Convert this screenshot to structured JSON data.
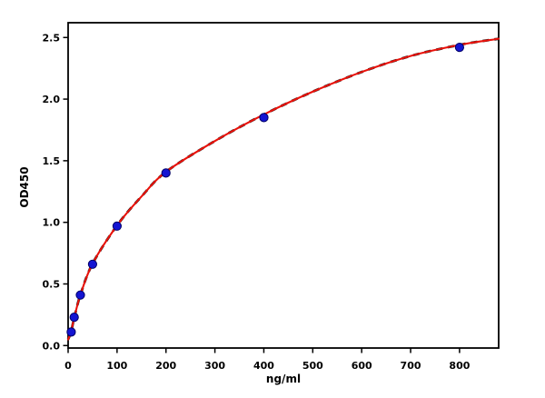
{
  "chart_data": {
    "type": "scatter",
    "title": "",
    "xlabel": "ng/ml",
    "ylabel": "OD450",
    "xlim": [
      0,
      880
    ],
    "ylim": [
      -0.02,
      2.62
    ],
    "grid": false,
    "legend": null,
    "background_color": "#ffffff",
    "axis_color": "#000000",
    "xticks": {
      "values": [
        0,
        100,
        200,
        300,
        400,
        500,
        600,
        700,
        800
      ],
      "labels": [
        "0",
        "100",
        "200",
        "300",
        "400",
        "500",
        "600",
        "700",
        "800"
      ]
    },
    "yticks": {
      "values": [
        0,
        0.5,
        1.0,
        1.5,
        2.0,
        2.5
      ],
      "labels": [
        "0.0",
        "0.5",
        "1.0",
        "1.5",
        "2.0",
        "2.5"
      ]
    },
    "series": [
      {
        "name": "standard-points",
        "type": "scatter",
        "marker": "circle",
        "fill_color": "#1414d2",
        "edge_color": "#000066",
        "x": [
          6.25,
          12.5,
          25,
          50,
          100,
          200,
          400,
          800
        ],
        "y": [
          0.11,
          0.23,
          0.41,
          0.66,
          0.97,
          1.4,
          1.85,
          2.42
        ]
      },
      {
        "name": "fitted-curve",
        "type": "line",
        "color": "#e8120b",
        "underlay_color": "#141414",
        "underlay_style": "dashed",
        "points": [
          [
            0,
            0.05
          ],
          [
            6.25,
            0.115
          ],
          [
            12.5,
            0.225
          ],
          [
            25,
            0.41
          ],
          [
            50,
            0.665
          ],
          [
            100,
            0.975
          ],
          [
            150,
            1.21
          ],
          [
            200,
            1.41
          ],
          [
            300,
            1.66
          ],
          [
            400,
            1.875
          ],
          [
            500,
            2.06
          ],
          [
            600,
            2.22
          ],
          [
            700,
            2.35
          ],
          [
            800,
            2.44
          ],
          [
            880,
            2.49
          ]
        ]
      }
    ]
  }
}
